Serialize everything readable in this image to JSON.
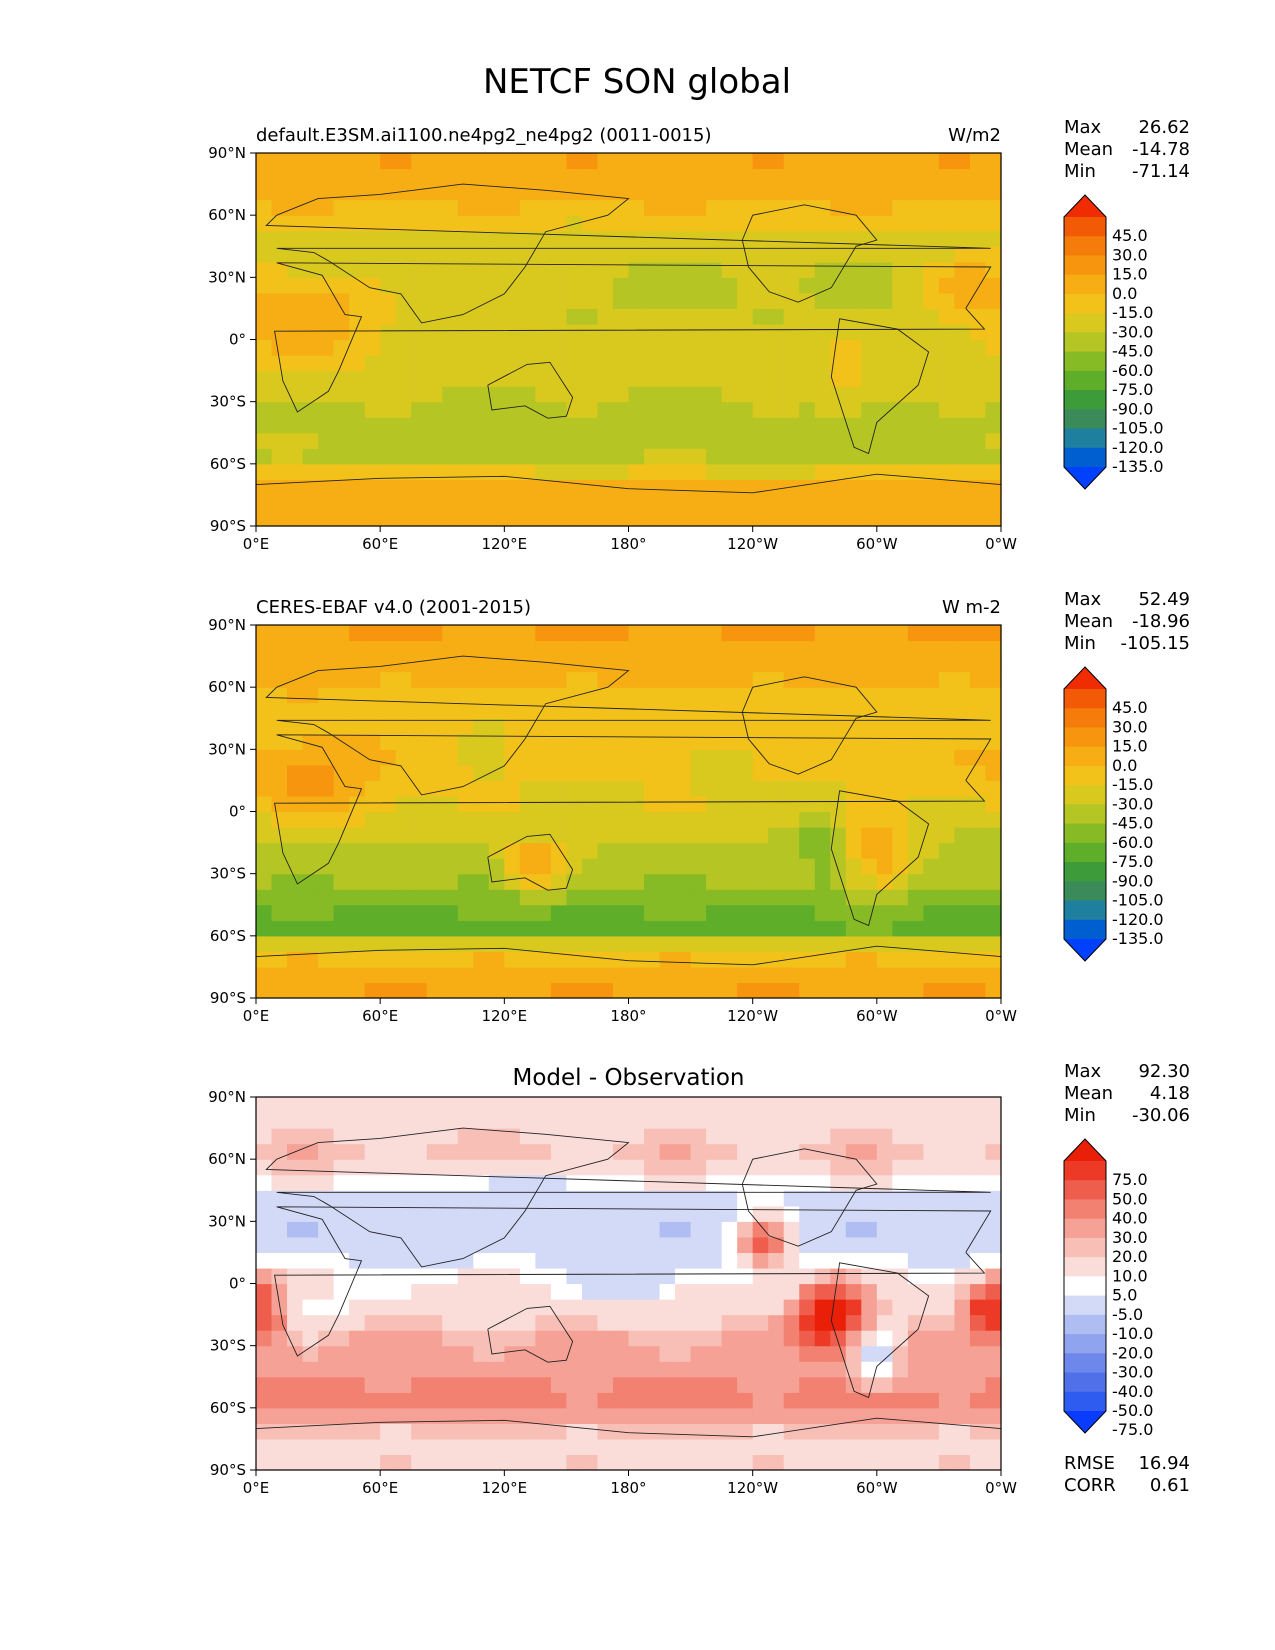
{
  "figure": {
    "title": "NETCF SON global"
  },
  "colors": {
    "abs_levels": [
      "#0040ff",
      "#005fd0",
      "#1f7f9f",
      "#3a8a5a",
      "#3e9b3a",
      "#5eae2a",
      "#86bb25",
      "#b5c524",
      "#d9c91f",
      "#f2c21a",
      "#f7ad14",
      "#f7950f",
      "#f57b0a",
      "#f25a06",
      "#f02d02"
    ],
    "diff_levels": [
      "#0a3cff",
      "#2f5cf0",
      "#4f70e8",
      "#6d88ea",
      "#8fa3ee",
      "#b0bdf2",
      "#d2daf7",
      "#ffffff",
      "#fadcd8",
      "#f8bfb7",
      "#f5a195",
      "#f28172",
      "#ef5e4d",
      "#ec3a26",
      "#e91f08"
    ]
  },
  "chart_data": [
    {
      "type": "heatmap",
      "panel": "test",
      "title": "",
      "left_title": "default.E3SM.ai1100.ne4pg2_ne4pg2 (0011-0015)",
      "right_title": "W/m2",
      "xticklabels": [
        "0°E",
        "60°E",
        "120°E",
        "180°",
        "120°W",
        "60°W",
        "0°W"
      ],
      "yticklabels": [
        "90°N",
        "60°N",
        "30°N",
        "0°",
        "30°S",
        "60°S",
        "90°S"
      ],
      "xlim": [
        0,
        360
      ],
      "ylim": [
        -90,
        90
      ],
      "stats": {
        "max_label": "Max",
        "max": "26.62",
        "mean_label": "Mean",
        "mean": "-14.78",
        "min_label": "Min",
        "min": "-71.14"
      },
      "colorbar": {
        "levels": [
          -135,
          -120,
          -105,
          -90,
          -75,
          -60,
          -45,
          -30,
          -15,
          0,
          15,
          30,
          45
        ],
        "labels": [
          "45.0",
          "30.0",
          "15.0",
          "0.0",
          "-15.0",
          "-30.0",
          "-45.0",
          "-60.0",
          "-75.0",
          "-90.0",
          "-105.0",
          "-120.0",
          "-135.0"
        ]
      },
      "latitude_profile": [
        {
          "lat": -90,
          "value": 10
        },
        {
          "lat": -75,
          "value": 8
        },
        {
          "lat": -65,
          "value": -5
        },
        {
          "lat": -55,
          "value": -45
        },
        {
          "lat": -45,
          "value": -42
        },
        {
          "lat": -30,
          "value": -30
        },
        {
          "lat": -15,
          "value": -28
        },
        {
          "lat": 0,
          "value": -25
        },
        {
          "lat": 15,
          "value": -30
        },
        {
          "lat": 30,
          "value": -32
        },
        {
          "lat": 45,
          "value": -25
        },
        {
          "lat": 60,
          "value": -5
        },
        {
          "lat": 75,
          "value": 10
        },
        {
          "lat": 90,
          "value": 12
        }
      ],
      "features": [
        {
          "lon": 25,
          "lat": 10,
          "dlon": 40,
          "dlat": 25,
          "value": 12
        },
        {
          "lon": 100,
          "lat": 25,
          "dlon": 25,
          "dlat": 15,
          "value": -20
        },
        {
          "lon": 135,
          "lat": 40,
          "dlon": 30,
          "dlat": 12,
          "value": -25
        },
        {
          "lon": 345,
          "lat": 25,
          "dlon": 20,
          "dlat": 15,
          "value": 10
        },
        {
          "lon": 285,
          "lat": -15,
          "dlon": 15,
          "dlat": 20,
          "value": -10
        },
        {
          "lon": 160,
          "lat": -55,
          "dlon": 60,
          "dlat": 8,
          "value": -30
        },
        {
          "lon": 240,
          "lat": -55,
          "dlon": 40,
          "dlat": 8,
          "value": -30
        },
        {
          "lon": 10,
          "lat": -50,
          "dlon": 30,
          "dlat": 8,
          "value": -25
        }
      ]
    },
    {
      "type": "heatmap",
      "panel": "reference",
      "title": "",
      "left_title": "CERES-EBAF v4.0 (2001-2015)",
      "right_title": "W m-2",
      "xticklabels": [
        "0°E",
        "60°E",
        "120°E",
        "180°",
        "120°W",
        "60°W",
        "0°W"
      ],
      "yticklabels": [
        "90°N",
        "60°N",
        "30°N",
        "0°",
        "30°S",
        "60°S",
        "90°S"
      ],
      "xlim": [
        0,
        360
      ],
      "ylim": [
        -90,
        90
      ],
      "stats": {
        "max_label": "Max",
        "max": "52.49",
        "mean_label": "Mean",
        "mean": "-18.96",
        "min_label": "Min",
        "min": "-105.15"
      },
      "colorbar": {
        "levels": [
          -135,
          -120,
          -105,
          -90,
          -75,
          -60,
          -45,
          -30,
          -15,
          0,
          15,
          30,
          45
        ],
        "labels": [
          "45.0",
          "30.0",
          "15.0",
          "0.0",
          "-15.0",
          "-30.0",
          "-45.0",
          "-60.0",
          "-75.0",
          "-90.0",
          "-105.0",
          "-120.0",
          "-135.0"
        ]
      },
      "latitude_profile": [
        {
          "lat": -90,
          "value": 15
        },
        {
          "lat": -75,
          "value": 10
        },
        {
          "lat": -65,
          "value": -20
        },
        {
          "lat": -55,
          "value": -70
        },
        {
          "lat": -45,
          "value": -55
        },
        {
          "lat": -30,
          "value": -40
        },
        {
          "lat": -15,
          "value": -30
        },
        {
          "lat": 0,
          "value": -18
        },
        {
          "lat": 15,
          "value": -15
        },
        {
          "lat": 30,
          "value": -5
        },
        {
          "lat": 45,
          "value": -15
        },
        {
          "lat": 60,
          "value": 0
        },
        {
          "lat": 75,
          "value": 12
        },
        {
          "lat": 90,
          "value": 15
        }
      ],
      "features": [
        {
          "lon": 275,
          "lat": -15,
          "dlon": 15,
          "dlat": 15,
          "value": -55
        },
        {
          "lon": 355,
          "lat": -10,
          "dlon": 15,
          "dlat": 15,
          "value": -40
        },
        {
          "lon": 5,
          "lat": -12,
          "dlon": 8,
          "dlat": 12,
          "value": -35
        },
        {
          "lon": 25,
          "lat": 15,
          "dlon": 35,
          "dlat": 20,
          "value": 20
        },
        {
          "lon": 135,
          "lat": -25,
          "dlon": 15,
          "dlat": 12,
          "value": 15
        },
        {
          "lon": 110,
          "lat": 30,
          "dlon": 10,
          "dlat": 8,
          "value": -25
        },
        {
          "lon": 230,
          "lat": 25,
          "dlon": 15,
          "dlat": 10,
          "value": -25
        },
        {
          "lon": 300,
          "lat": -20,
          "dlon": 15,
          "dlat": 20,
          "value": 10
        }
      ]
    },
    {
      "type": "heatmap",
      "panel": "difference",
      "title": "Model - Observation",
      "left_title": "",
      "right_title": "",
      "xticklabels": [
        "0°E",
        "60°E",
        "120°E",
        "180°",
        "120°W",
        "60°W",
        "0°W"
      ],
      "yticklabels": [
        "90°N",
        "60°N",
        "30°N",
        "0°",
        "30°S",
        "60°S",
        "90°S"
      ],
      "xlim": [
        0,
        360
      ],
      "ylim": [
        -90,
        90
      ],
      "stats": {
        "max_label": "Max",
        "max": "92.30",
        "mean_label": "Mean",
        "mean": "4.18",
        "min_label": "Min",
        "min": "-30.06"
      },
      "extra_stats": {
        "rmse_label": "RMSE",
        "rmse": "16.94",
        "corr_label": "CORR",
        "corr": "0.61"
      },
      "colorbar": {
        "levels": [
          -100,
          -75,
          -50,
          -40,
          -30,
          -20,
          -10,
          -5,
          5,
          10,
          20,
          30,
          40,
          50,
          75,
          100
        ],
        "labels": [
          "75.0",
          "50.0",
          "40.0",
          "30.0",
          "20.0",
          "10.0",
          "5.0",
          "-5.0",
          "-10.0",
          "-20.0",
          "-30.0",
          "-40.0",
          "-50.0",
          "-75.0"
        ]
      },
      "latitude_profile": [
        {
          "lat": -90,
          "value": 2
        },
        {
          "lat": -75,
          "value": 3
        },
        {
          "lat": -65,
          "value": 12
        },
        {
          "lat": -55,
          "value": 25
        },
        {
          "lat": -45,
          "value": 18
        },
        {
          "lat": -30,
          "value": 12
        },
        {
          "lat": -15,
          "value": 3
        },
        {
          "lat": 0,
          "value": -4
        },
        {
          "lat": 15,
          "value": -12
        },
        {
          "lat": 30,
          "value": -18
        },
        {
          "lat": 45,
          "value": -10
        },
        {
          "lat": 60,
          "value": 8
        },
        {
          "lat": 75,
          "value": 3
        },
        {
          "lat": 90,
          "value": 0
        }
      ],
      "features": [
        {
          "lon": 278,
          "lat": -15,
          "dlon": 16,
          "dlat": 15,
          "value": 70
        },
        {
          "lon": 356,
          "lat": -12,
          "dlon": 14,
          "dlat": 14,
          "value": 55
        },
        {
          "lon": 6,
          "lat": -12,
          "dlon": 8,
          "dlat": 12,
          "value": 45
        },
        {
          "lon": 245,
          "lat": 20,
          "dlon": 12,
          "dlat": 12,
          "value": 35
        },
        {
          "lon": 90,
          "lat": -55,
          "dlon": 25,
          "dlat": 6,
          "value": 25
        },
        {
          "lon": 125,
          "lat": 42,
          "dlon": 30,
          "dlat": 12,
          "value": -15
        },
        {
          "lon": 185,
          "lat": 5,
          "dlon": 25,
          "dlat": 15,
          "value": -20
        },
        {
          "lon": 90,
          "lat": 20,
          "dlon": 20,
          "dlat": 10,
          "value": -15
        },
        {
          "lon": 30,
          "lat": -10,
          "dlon": 20,
          "dlat": 10,
          "value": -10
        },
        {
          "lon": 300,
          "lat": -35,
          "dlon": 10,
          "dlat": 15,
          "value": -12
        }
      ]
    }
  ]
}
